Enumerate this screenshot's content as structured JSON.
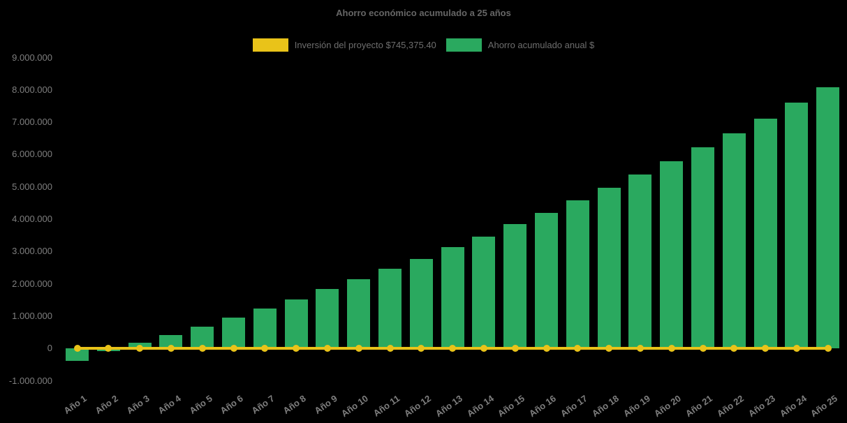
{
  "title": "Ahorro económico acumulado a 25 años",
  "colors": {
    "background": "#000000",
    "bar_green": "#2aa95f",
    "line_yellow": "#e9c319",
    "title_gray": "#666666",
    "legend_text_gray": "#6e6e6e",
    "tick_gray": "#7f7f7f"
  },
  "chart_data": {
    "type": "bar",
    "title": "Ahorro económico acumulado a 25 años",
    "xlabel": "",
    "ylabel": "",
    "grid": false,
    "legend_position": "top",
    "ylim": [
      -1000000,
      9000000
    ],
    "ytick_step": 1000000,
    "ytick_labels": [
      "9.000.000",
      "8.000.000",
      "7.000.000",
      "6.000.000",
      "5.000.000",
      "4.000.000",
      "3.000.000",
      "2.000.000",
      "1.000.000",
      "0",
      "-1.000.000"
    ],
    "categories": [
      "Año 1",
      "Año 2",
      "Año 3",
      "Año 4",
      "Año 5",
      "Año 6",
      "Año 7",
      "Año 8",
      "Año 9",
      "Año 10",
      "Año 11",
      "Año 12",
      "Año 13",
      "Año 14",
      "Año 15",
      "Año 16",
      "Año 17",
      "Año 18",
      "Año 19",
      "Año 20",
      "Año 21",
      "Año 22",
      "Año 23",
      "Año 24",
      "Año 25"
    ],
    "series": [
      {
        "name": "Inversión del proyecto $745,375.40",
        "type": "line",
        "color": "#e9c319",
        "marker": "circle",
        "values": [
          0,
          0,
          0,
          0,
          0,
          0,
          0,
          0,
          0,
          0,
          0,
          0,
          0,
          0,
          0,
          0,
          0,
          0,
          0,
          0,
          0,
          0,
          0,
          0,
          0
        ]
      },
      {
        "name": "Ahorro acumulado anual $",
        "type": "bar",
        "color": "#2aa95f",
        "values": [
          -370000,
          -70000,
          180000,
          410000,
          670000,
          970000,
          1250000,
          1530000,
          1840000,
          2150000,
          2460000,
          2780000,
          3130000,
          3470000,
          3850000,
          4200000,
          4590000,
          4980000,
          5390000,
          5800000,
          6230000,
          6660000,
          7120000,
          7610000,
          8080000
        ]
      }
    ]
  }
}
